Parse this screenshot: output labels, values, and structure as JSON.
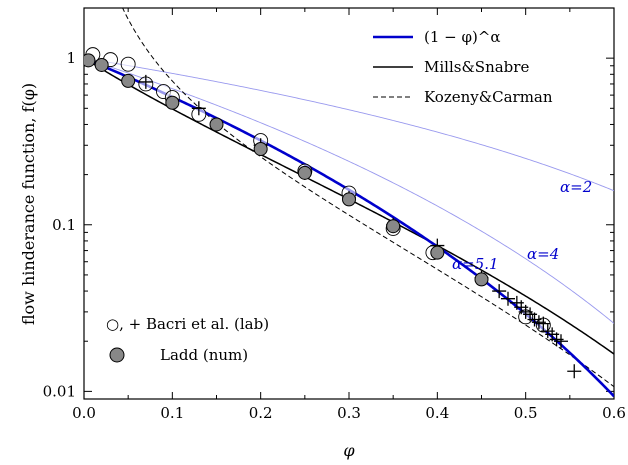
{
  "chart_data": {
    "type": "line+scatter",
    "xlabel": "φ",
    "ylabel": "flow  hinderance  function,  f(φ)",
    "xlim": [
      0.0,
      0.6
    ],
    "ylim": [
      0.009,
      2.0
    ],
    "yscale": "log",
    "xticks": [
      "0.0",
      "0.1",
      "0.2",
      "0.3",
      "0.4",
      "0.5",
      "0.6"
    ],
    "yticks": [
      {
        "value": 1,
        "label": "1"
      },
      {
        "value": 0.1,
        "label": "0.1"
      },
      {
        "value": 0.01,
        "label": "0.01"
      }
    ],
    "series": [
      {
        "name": "(1 − φ)^α",
        "kind": "line",
        "color": "#0000cc",
        "style": "solid-thick",
        "alpha": 5.1
      },
      {
        "name": "Mills&Snabre",
        "kind": "line",
        "color": "#000000",
        "style": "solid"
      },
      {
        "name": "Kozeny&Carman",
        "kind": "line",
        "color": "#000000",
        "style": "dashed"
      },
      {
        "name": "α=2",
        "kind": "line",
        "color": "#9999ee",
        "style": "thin",
        "alpha": 2
      },
      {
        "name": "α=4",
        "kind": "line",
        "color": "#9999ee",
        "style": "thin",
        "alpha": 4
      },
      {
        "name": "Bacri et al. (lab) circles",
        "kind": "scatter",
        "marker": "open-circle",
        "points": [
          [
            0.01,
            1.05
          ],
          [
            0.03,
            0.98
          ],
          [
            0.05,
            0.92
          ],
          [
            0.07,
            0.7
          ],
          [
            0.09,
            0.63
          ],
          [
            0.1,
            0.58
          ],
          [
            0.13,
            0.46
          ],
          [
            0.2,
            0.32
          ],
          [
            0.25,
            0.21
          ],
          [
            0.3,
            0.155
          ],
          [
            0.35,
            0.095
          ],
          [
            0.395,
            0.068
          ],
          [
            0.5,
            0.028
          ],
          [
            0.52,
            0.025
          ]
        ]
      },
      {
        "name": "Bacri et al. (lab) crosses",
        "kind": "scatter",
        "marker": "plus",
        "points": [
          [
            0.07,
            0.72
          ],
          [
            0.13,
            0.5
          ],
          [
            0.2,
            0.3
          ],
          [
            0.25,
            0.205
          ],
          [
            0.3,
            0.145
          ],
          [
            0.35,
            0.1
          ],
          [
            0.4,
            0.075
          ],
          [
            0.45,
            0.048
          ],
          [
            0.47,
            0.04
          ],
          [
            0.48,
            0.036
          ],
          [
            0.49,
            0.034
          ],
          [
            0.495,
            0.032
          ],
          [
            0.5,
            0.03
          ],
          [
            0.505,
            0.029
          ],
          [
            0.51,
            0.027
          ],
          [
            0.515,
            0.026
          ],
          [
            0.52,
            0.0255
          ],
          [
            0.525,
            0.023
          ],
          [
            0.53,
            0.022
          ],
          [
            0.535,
            0.0205
          ],
          [
            0.54,
            0.02
          ],
          [
            0.555,
            0.0132
          ]
        ]
      },
      {
        "name": "Ladd (num)",
        "kind": "scatter",
        "marker": "filled-circle",
        "points": [
          [
            0.005,
            0.97
          ],
          [
            0.02,
            0.91
          ],
          [
            0.05,
            0.73
          ],
          [
            0.1,
            0.54
          ],
          [
            0.15,
            0.4
          ],
          [
            0.2,
            0.285
          ],
          [
            0.25,
            0.205
          ],
          [
            0.3,
            0.142
          ],
          [
            0.35,
            0.098
          ],
          [
            0.4,
            0.068
          ],
          [
            0.45,
            0.047
          ]
        ]
      }
    ],
    "legend": {
      "placement": "top-right",
      "entries": [
        "(1 − φ)^α",
        "Mills&Snabre",
        "Kozeny&Carman"
      ]
    },
    "legend2": {
      "placement": "bottom-left",
      "entries": [
        "○, + Bacri et al. (lab)",
        "Ladd (num)"
      ]
    },
    "annotations": [
      "α=2",
      "α=4",
      "α=5.1"
    ],
    "grid": false
  }
}
